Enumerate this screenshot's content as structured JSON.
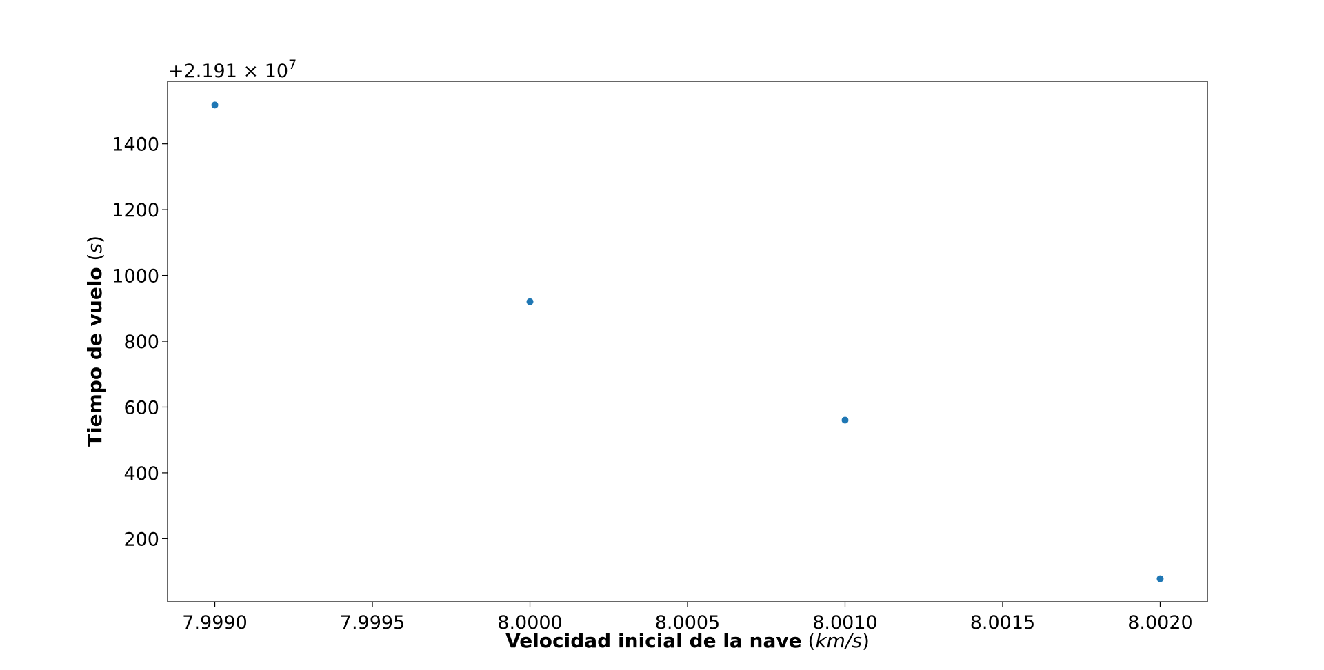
{
  "chart_data": {
    "type": "scatter",
    "title": "",
    "xlabel_bold": "Velocidad inicial de la nave",
    "xlabel_unit": "km/s",
    "ylabel_bold": "Tiempo de vuelo",
    "ylabel_unit": "s",
    "y_offset_text": "+2.191 × 10",
    "y_offset_exponent": "7",
    "x": [
      7.999,
      8.0,
      8.001,
      8.002
    ],
    "y": [
      1518,
      920,
      560,
      78
    ],
    "xlim": [
      7.99885,
      8.00215
    ],
    "ylim": [
      8,
      1590
    ],
    "xticks": [
      7.999,
      7.9995,
      8.0,
      8.0005,
      8.001,
      8.0015,
      8.002
    ],
    "xtick_labels": [
      "7.9990",
      "7.9995",
      "8.0000",
      "8.0005",
      "8.0010",
      "8.0015",
      "8.0020"
    ],
    "yticks": [
      200,
      400,
      600,
      800,
      1000,
      1200,
      1400
    ],
    "ytick_labels": [
      "200",
      "400",
      "600",
      "800",
      "1000",
      "1200",
      "1400"
    ],
    "grid": false,
    "marker_color": "#1f77b4"
  }
}
